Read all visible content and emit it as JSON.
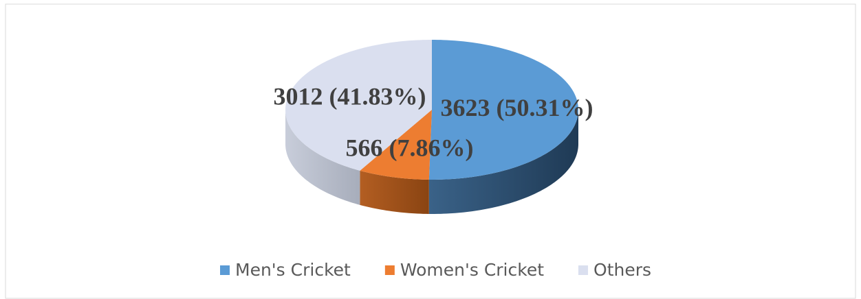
{
  "chart_data": {
    "type": "pie",
    "categories": [
      "Men's Cricket",
      "Women's Cricket",
      "Others"
    ],
    "values": [
      3623,
      566,
      3012
    ],
    "value_labels": [
      "3623 (50.31%)",
      "566 (7.86%)",
      "3012 (41.83%)"
    ],
    "colors": [
      "#5b9bd5",
      "#ed7d31",
      "#dadfef"
    ],
    "legend": "bottom"
  }
}
